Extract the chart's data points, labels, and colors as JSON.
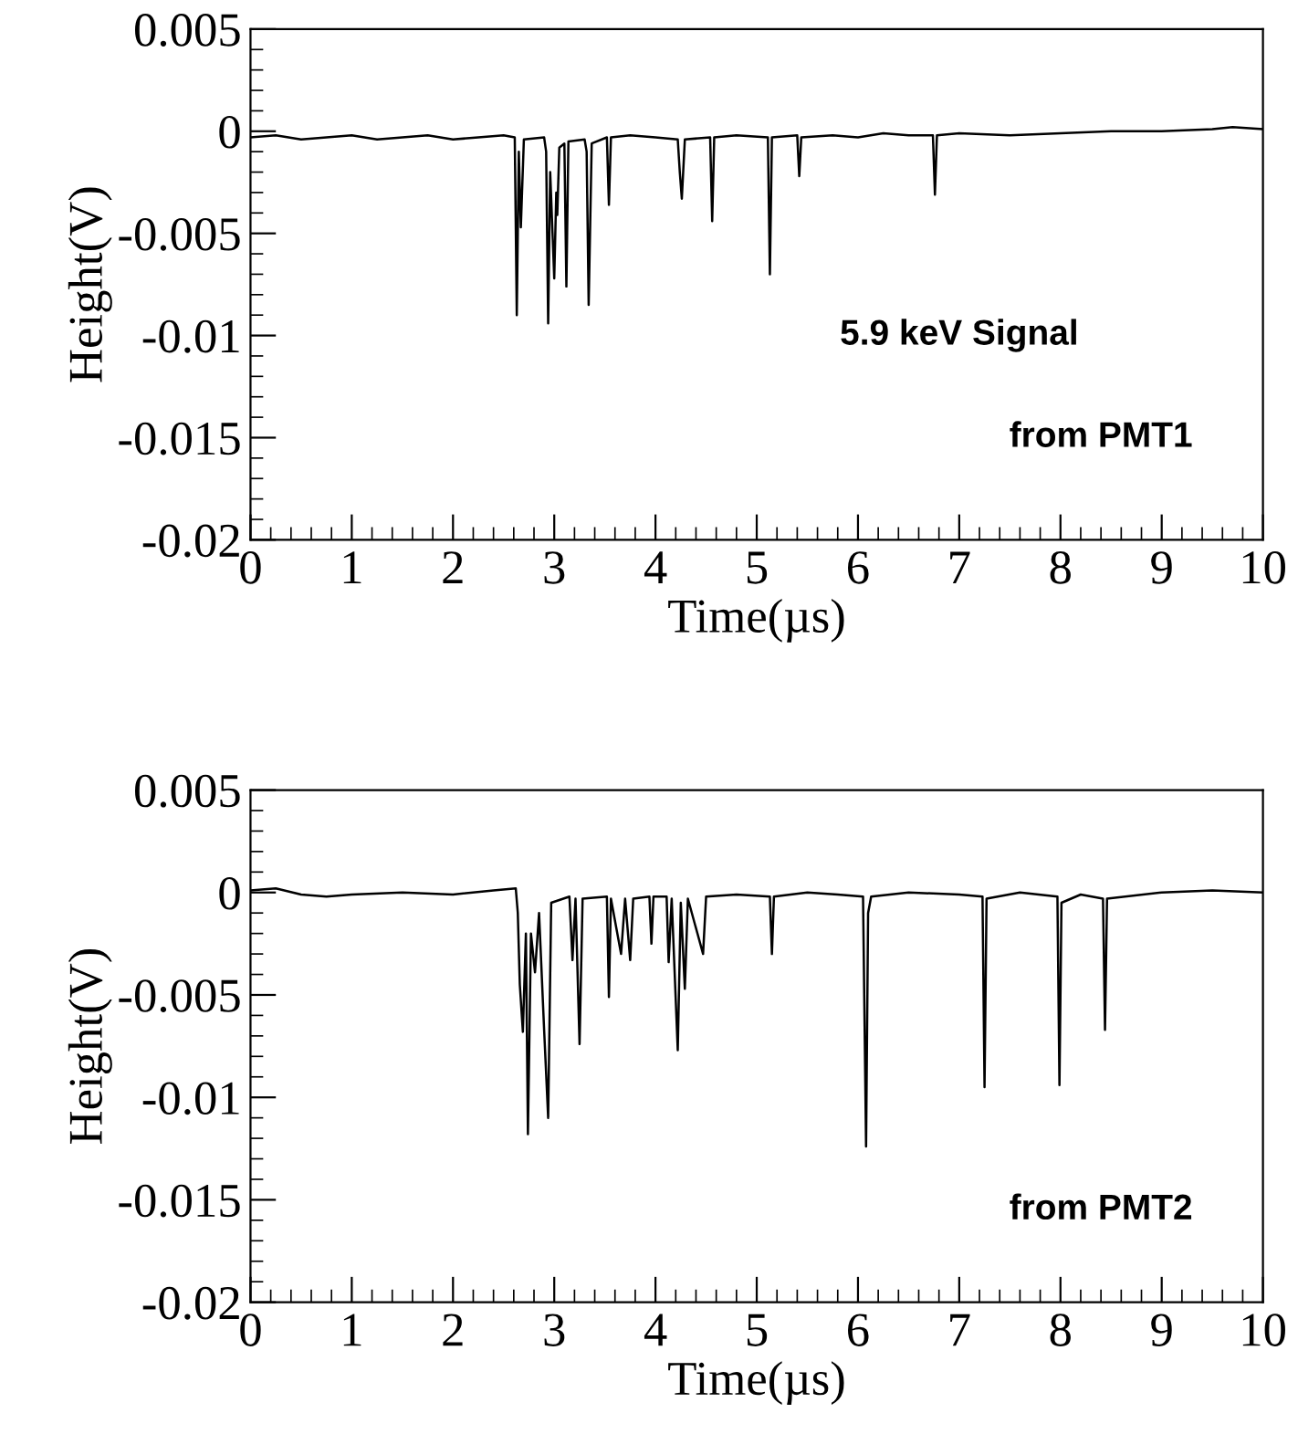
{
  "chart_data": [
    {
      "type": "line",
      "xlabel": "Time(µs)",
      "ylabel": "Height(V)",
      "xlim": [
        0,
        10
      ],
      "ylim": [
        -0.02,
        0.005
      ],
      "xticks": [
        0,
        1,
        2,
        3,
        4,
        5,
        6,
        7,
        8,
        9,
        10
      ],
      "yticks": [
        -0.02,
        -0.015,
        -0.01,
        -0.005,
        0,
        0.005
      ],
      "grid": false,
      "legend": false,
      "annotations": [
        "5.9 keV Signal",
        "from PMT1"
      ],
      "series": [
        {
          "color": "#000000",
          "x": [
            0,
            0.25,
            0.5,
            0.75,
            1.0,
            1.25,
            1.5,
            1.75,
            2.0,
            2.25,
            2.5,
            2.61,
            2.63,
            2.65,
            2.67,
            2.7,
            2.9,
            2.92,
            2.94,
            2.96,
            3.0,
            3.02,
            3.03,
            3.05,
            3.1,
            3.12,
            3.14,
            3.3,
            3.32,
            3.34,
            3.37,
            3.52,
            3.54,
            3.56,
            3.75,
            4.0,
            4.22,
            4.24,
            4.26,
            4.29,
            4.54,
            4.56,
            4.58,
            4.8,
            5.11,
            5.13,
            5.15,
            5.4,
            5.42,
            5.44,
            5.75,
            6.0,
            6.25,
            6.5,
            6.74,
            6.76,
            6.78,
            7.0,
            7.5,
            8.0,
            8.5,
            9.0,
            9.5,
            9.7,
            10.0
          ],
          "values": [
            -0.0003,
            -0.0002,
            -0.0004,
            -0.0003,
            -0.0002,
            -0.0004,
            -0.0003,
            -0.0002,
            -0.0004,
            -0.0003,
            -0.0002,
            -0.0003,
            -0.009,
            -0.001,
            -0.0047,
            -0.0004,
            -0.0003,
            -0.001,
            -0.0094,
            -0.002,
            -0.0072,
            -0.003,
            -0.0041,
            -0.0008,
            -0.0006,
            -0.0076,
            -0.0005,
            -0.0004,
            -0.001,
            -0.0085,
            -0.0006,
            -0.0003,
            -0.0036,
            -0.0003,
            -0.0002,
            -0.0003,
            -0.0004,
            -0.002,
            -0.0033,
            -0.0004,
            -0.0003,
            -0.0044,
            -0.0003,
            -0.0002,
            -0.0003,
            -0.007,
            -0.0003,
            -0.0002,
            -0.0022,
            -0.0003,
            -0.0002,
            -0.0003,
            -0.0001,
            -0.0002,
            -0.0002,
            -0.0031,
            -0.0002,
            -0.0001,
            -0.0002,
            -0.0001,
            0.0,
            0.0,
            0.0001,
            0.0002,
            0.0001
          ]
        }
      ]
    },
    {
      "type": "line",
      "xlabel": "Time(µs)",
      "ylabel": "Height(V)",
      "xlim": [
        0,
        10
      ],
      "ylim": [
        -0.02,
        0.005
      ],
      "xticks": [
        0,
        1,
        2,
        3,
        4,
        5,
        6,
        7,
        8,
        9,
        10
      ],
      "yticks": [
        -0.02,
        -0.015,
        -0.01,
        -0.005,
        0,
        0.005
      ],
      "grid": false,
      "legend": false,
      "annotations": [
        "from PMT2"
      ],
      "series": [
        {
          "color": "#000000",
          "x": [
            0,
            0.25,
            0.5,
            0.75,
            1.0,
            1.5,
            2.0,
            2.4,
            2.62,
            2.64,
            2.66,
            2.69,
            2.72,
            2.74,
            2.77,
            2.81,
            2.85,
            2.9,
            2.94,
            2.97,
            3.15,
            3.18,
            3.21,
            3.25,
            3.28,
            3.52,
            3.54,
            3.56,
            3.66,
            3.7,
            3.75,
            3.78,
            3.94,
            3.96,
            3.98,
            4.11,
            4.13,
            4.16,
            4.22,
            4.25,
            4.29,
            4.32,
            4.47,
            4.5,
            4.8,
            5.13,
            5.15,
            5.17,
            5.5,
            5.8,
            6.05,
            6.08,
            6.1,
            6.13,
            6.5,
            7.0,
            7.23,
            7.25,
            7.27,
            7.6,
            7.97,
            7.99,
            8.01,
            8.2,
            8.42,
            8.44,
            8.46,
            9.0,
            9.5,
            10.0
          ],
          "values": [
            0.0001,
            0.0002,
            -0.0001,
            -0.0002,
            -0.0001,
            0.0,
            -0.0001,
            0.0001,
            0.0002,
            -0.001,
            -0.0045,
            -0.0068,
            -0.002,
            -0.0118,
            -0.002,
            -0.0039,
            -0.001,
            -0.0067,
            -0.011,
            -0.0005,
            -0.0002,
            -0.0033,
            -0.0003,
            -0.0074,
            -0.0003,
            -0.0002,
            -0.0051,
            -0.0003,
            -0.003,
            -0.0003,
            -0.0033,
            -0.0003,
            -0.0002,
            -0.0025,
            -0.0002,
            -0.0002,
            -0.0034,
            -0.0003,
            -0.0077,
            -0.0005,
            -0.0047,
            -0.0003,
            -0.003,
            -0.0002,
            -0.0001,
            -0.0002,
            -0.003,
            -0.0002,
            0.0,
            -0.0001,
            -0.0002,
            -0.0124,
            -0.001,
            -0.0002,
            0.0,
            -0.0001,
            -0.0002,
            -0.0095,
            -0.0003,
            0.0,
            -0.0002,
            -0.0094,
            -0.0005,
            -0.0001,
            -0.0003,
            -0.0067,
            -0.0003,
            0.0,
            0.0001,
            0.0
          ]
        }
      ]
    }
  ]
}
